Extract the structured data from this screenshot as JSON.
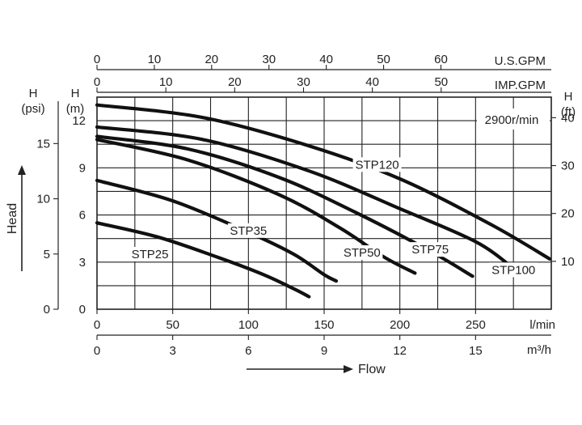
{
  "chart_data": {
    "type": "line",
    "title": "",
    "speed_label": "2900r/min",
    "x_axis": {
      "label": "l/min",
      "range": [
        0,
        300
      ],
      "ticks": [
        "0",
        "50",
        "100",
        "150",
        "200",
        "250"
      ],
      "tick_values": [
        0,
        50,
        100,
        150,
        200,
        250
      ]
    },
    "x_axis_m3h": {
      "label": "m³/h",
      "ticks": [
        "0",
        "3",
        "6",
        "9",
        "12",
        "15"
      ],
      "tick_values": [
        0,
        3,
        6,
        9,
        12,
        15
      ]
    },
    "x_axis_usgpm": {
      "label": "U.S.GPM",
      "ticks": [
        "0",
        "10",
        "20",
        "30",
        "40",
        "50",
        "60"
      ],
      "tick_values": [
        0,
        10,
        20,
        30,
        40,
        50,
        60
      ]
    },
    "x_axis_impgpm": {
      "label": "IMP.GPM",
      "ticks": [
        "0",
        "10",
        "20",
        "30",
        "40",
        "50"
      ],
      "tick_values": [
        0,
        10,
        20,
        30,
        40,
        50
      ]
    },
    "y_axis_m": {
      "label_top": "H",
      "label_unit": "(m)",
      "range": [
        0,
        13.5
      ],
      "ticks": [
        "0",
        "3",
        "6",
        "9",
        "12"
      ],
      "tick_values": [
        0,
        3,
        6,
        9,
        12
      ]
    },
    "y_axis_psi": {
      "label_top": "H",
      "label_unit": "(psi)",
      "ticks": [
        "0",
        "5",
        "10",
        "15"
      ],
      "tick_values": [
        0,
        5,
        10,
        15
      ]
    },
    "y_axis_ft": {
      "label_top": "H",
      "label_unit": "(ft)",
      "ticks": [
        "10",
        "20",
        "30",
        "40"
      ],
      "tick_values": [
        10,
        20,
        30,
        40
      ]
    },
    "ylabel": "Head",
    "xlabel": "Flow",
    "grid": true,
    "series": [
      {
        "name": "STP25",
        "x": [
          0,
          40,
          80,
          110,
          130,
          140
        ],
        "y": [
          5.5,
          4.6,
          3.3,
          2.2,
          1.3,
          0.8
        ]
      },
      {
        "name": "STP35",
        "x": [
          0,
          50,
          100,
          130,
          150,
          158
        ],
        "y": [
          8.2,
          6.9,
          4.9,
          3.5,
          2.2,
          1.8
        ]
      },
      {
        "name": "STP50",
        "x": [
          0,
          60,
          120,
          160,
          190,
          210
        ],
        "y": [
          10.8,
          9.5,
          7.3,
          5.2,
          3.3,
          2.3
        ]
      },
      {
        "name": "STP75",
        "x": [
          0,
          60,
          120,
          170,
          220,
          248
        ],
        "y": [
          11.0,
          10.2,
          8.4,
          6.2,
          3.7,
          2.1
        ]
      },
      {
        "name": "STP100",
        "x": [
          0,
          70,
          140,
          200,
          250,
          275
        ],
        "y": [
          11.6,
          10.8,
          8.8,
          6.4,
          4.3,
          2.6
        ]
      },
      {
        "name": "STP120",
        "x": [
          0,
          70,
          140,
          200,
          260,
          299
        ],
        "y": [
          13.0,
          12.2,
          10.4,
          8.3,
          5.4,
          3.2
        ]
      }
    ],
    "label_positions_data": [
      {
        "name": "STP25",
        "x": 35,
        "y": 3.3
      },
      {
        "name": "STP35",
        "x": 100,
        "y": 4.8
      },
      {
        "name": "STP50",
        "x": 175,
        "y": 3.4
      },
      {
        "name": "STP75",
        "x": 220,
        "y": 3.6
      },
      {
        "name": "STP100",
        "x": 275,
        "y": 2.3
      },
      {
        "name": "STP120",
        "x": 185,
        "y": 9.0
      }
    ]
  }
}
